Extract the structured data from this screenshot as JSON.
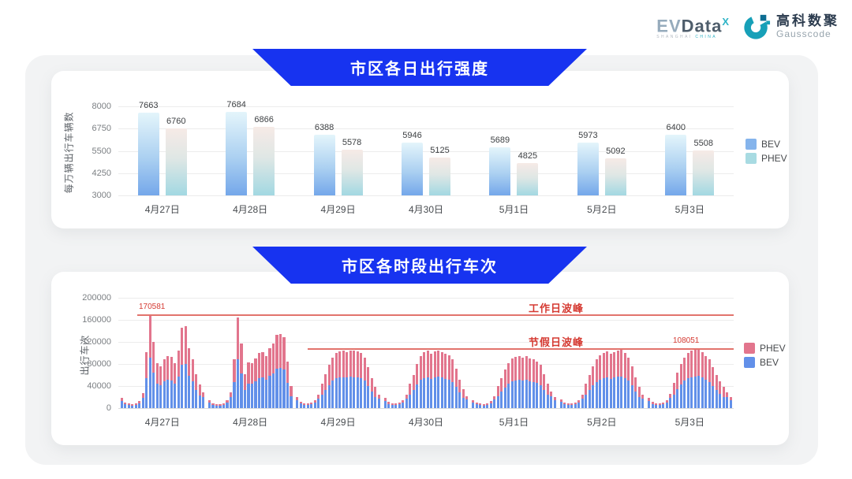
{
  "header": {
    "evdata": {
      "ev": "EV",
      "data": "Data",
      "sup": "X",
      "sub_left": "SHANGHAI",
      "sub_right": "CHINA"
    },
    "gausscode": {
      "cn": "高科数聚",
      "en": "Gausscode"
    }
  },
  "colors": {
    "banner_blue": "#1733f0",
    "bev_bar_top": "#e4f5fb",
    "bev_bar_mid": "#abd0f1",
    "bev_bar_bottom": "#74a7ea",
    "phev_bar_top": "#f6eae6",
    "phev_bar_mid": "#dfe7e5",
    "phev_bar_bottom": "#a2d8e2",
    "bev_solid": "#6290e9",
    "phev_solid": "#e2758d",
    "legend1_bev": "#85b4ec",
    "legend1_phev": "#a8dbe2",
    "annotation_red": "#d53a32",
    "annotation_line": "#e2736c"
  },
  "chart_data": [
    {
      "type": "bar",
      "title": "市区各日出行强度",
      "ylabel": "每万辆出行车辆数",
      "y_min": 3000,
      "y_max": 8000,
      "y_ticks": [
        8000,
        6750,
        5500,
        4250,
        3000
      ],
      "grid": true,
      "legend_position": "right",
      "categories": [
        "4月27日",
        "4月28日",
        "4月29日",
        "4月30日",
        "5月1日",
        "5月2日",
        "5月3日"
      ],
      "series": [
        {
          "name": "BEV",
          "values": [
            7663,
            7684,
            6388,
            5946,
            5689,
            5973,
            6400
          ]
        },
        {
          "name": "PHEV",
          "values": [
            6760,
            6866,
            5578,
            5125,
            4825,
            5092,
            5508
          ]
        }
      ],
      "legend": [
        {
          "label": "BEV",
          "color": "#85b4ec"
        },
        {
          "label": "PHEV",
          "color": "#a8dbe2"
        }
      ]
    },
    {
      "type": "bar",
      "stacked": true,
      "title": "市区各时段出行车次",
      "ylabel": "出行车次",
      "y_min": 0,
      "y_max": 200000,
      "y_ticks": [
        200000,
        160000,
        120000,
        80000,
        40000,
        0
      ],
      "grid": true,
      "x_unit": "hour-of-day",
      "legend_position": "right",
      "categories": [
        "4月27日",
        "4月28日",
        "4月29日",
        "4月30日",
        "5月1日",
        "5月2日",
        "5月3日"
      ],
      "series": [
        {
          "name": "BEV",
          "values_by_day": [
            [
              12600,
              7000,
              5600,
              4900,
              6300,
              9100,
              18900,
              54500,
              91000,
              64800,
              43700,
              41000,
              48100,
              51300,
              50200,
              43700,
              56700,
              78800,
              80500,
              58900,
              48100,
              33500,
              23200,
              19600
            ],
            [
              10500,
              6300,
              4900,
              4900,
              6300,
              9800,
              20300,
              47500,
              88600,
              63200,
              33500,
              44800,
              44300,
              48600,
              54000,
              55100,
              51300,
              58300,
              63200,
              71800,
              72400,
              69700,
              45900,
              21600
            ],
            [
              14000,
              8400,
              6300,
              5600,
              7000,
              10500,
              17500,
              24300,
              33500,
              42100,
              49700,
              54000,
              55600,
              56200,
              55100,
              56700,
              56200,
              55600,
              54000,
              49700,
              40500,
              29700,
              20500,
              17500
            ],
            [
              12600,
              7700,
              6300,
              5600,
              7000,
              9800,
              16800,
              23800,
              32400,
              43200,
              51300,
              54500,
              56200,
              52900,
              55600,
              56700,
              55100,
              53500,
              51800,
              47500,
              38900,
              28100,
              18900,
              15400
            ],
            [
              10500,
              7000,
              5600,
              4900,
              6300,
              9100,
              15400,
              21600,
              29700,
              37800,
              44300,
              48600,
              50200,
              51300,
              49700,
              50800,
              48600,
              47500,
              45900,
              42100,
              33500,
              24300,
              21000,
              14000
            ],
            [
              11200,
              7000,
              5600,
              5600,
              7000,
              9800,
              16800,
              23800,
              32400,
              41000,
              47500,
              51800,
              54000,
              55600,
              52900,
              55100,
              56700,
              57800,
              54000,
              49700,
              41000,
              30200,
              20500,
              16800
            ],
            [
              12600,
              7700,
              6300,
              5600,
              7000,
              10500,
              18200,
              24800,
              34600,
              43200,
              49700,
              54000,
              56200,
              57200,
              58400,
              55100,
              51300,
              47500,
              40000,
              32400,
              25900,
              20500,
              19600,
              14000
            ]
          ]
        },
        {
          "name": "PHEV",
          "values_by_day": [
            [
              5400,
              3000,
              2400,
              2100,
              2700,
              3900,
              8100,
              46500,
              79581,
              55200,
              37300,
              35000,
              40900,
              43700,
              42800,
              37300,
              48300,
              67200,
              68500,
              50100,
              40900,
              28500,
              19800,
              8400
            ],
            [
              4500,
              2700,
              2100,
              2100,
              2700,
              4200,
              8700,
              40500,
              75400,
              53800,
              28500,
              38200,
              37700,
              41400,
              46000,
              46900,
              43700,
              49700,
              53800,
              61200,
              61600,
              59300,
              39100,
              18400
            ],
            [
              6000,
              3600,
              2700,
              2400,
              3000,
              4500,
              7500,
              20700,
              28500,
              35900,
              42300,
              46000,
              47400,
              47800,
              46900,
              48300,
              47800,
              47400,
              46000,
              42300,
              34500,
              25300,
              17500,
              7500
            ],
            [
              5400,
              3300,
              2700,
              2400,
              3000,
              4200,
              7200,
              20200,
              27600,
              36800,
              43700,
              46500,
              47800,
              45100,
              47400,
              48300,
              46900,
              45500,
              44200,
              40500,
              33100,
              23900,
              16100,
              6600
            ],
            [
              4500,
              3000,
              2400,
              2100,
              2700,
              3900,
              6600,
              18400,
              25300,
              32200,
              37700,
              41400,
              42800,
              43700,
              42300,
              43200,
              41400,
              40500,
              39100,
              35900,
              28500,
              20700,
              9000,
              6000
            ],
            [
              4800,
              3000,
              2400,
              2400,
              3000,
              4200,
              7200,
              20200,
              27600,
              35000,
              40500,
              44200,
              46000,
              47400,
              45100,
              46900,
              48300,
              49200,
              46000,
              42300,
              35000,
              25800,
              17500,
              7200
            ],
            [
              5400,
              3300,
              2700,
              2400,
              3000,
              4500,
              7800,
              21200,
              29400,
              36800,
              42300,
              46000,
              47800,
              48800,
              49651,
              46900,
              43700,
              40500,
              34000,
              27600,
              22100,
              17500,
              8400,
              6000
            ]
          ]
        }
      ],
      "legend": [
        {
          "label": "PHEV",
          "color": "#e2758d"
        },
        {
          "label": "BEV",
          "color": "#6290e9"
        }
      ],
      "annotations": {
        "workday_peak": {
          "label": "工作日波峰",
          "value": 170581,
          "value_label": "170581"
        },
        "holiday_peak": {
          "label": "节假日波峰",
          "value": 108051,
          "value_label": "108051"
        }
      }
    }
  ]
}
